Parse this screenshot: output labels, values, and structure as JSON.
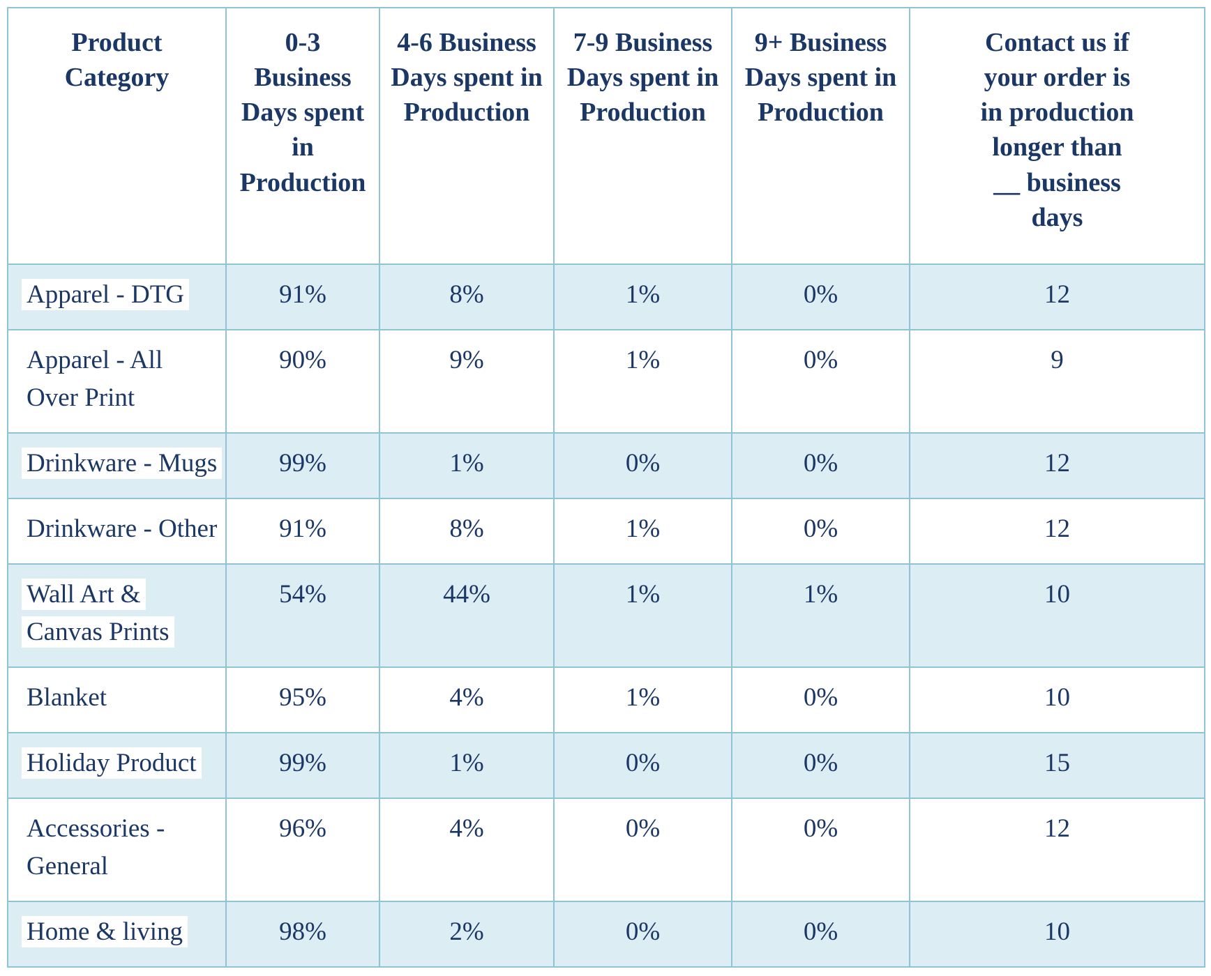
{
  "colors": {
    "text_navy": "#1b3766",
    "border_blue": "#8fc3d6",
    "row_light_blue": "#dcedf4",
    "row_white": "#ffffff",
    "category_highlight": "#ffffff"
  },
  "table": {
    "columns": [
      {
        "label": "Product\nCategory"
      },
      {
        "label": "0-3\nBusiness\nDays spent\nin\nProduction"
      },
      {
        "label": "4-6 Business\nDays spent in\nProduction"
      },
      {
        "label": "7-9 Business\nDays spent in\nProduction"
      },
      {
        "label": "9+ Business\nDays spent in\nProduction"
      },
      {
        "label": "Contact us if\nyour order is\nin production\nlonger than\n__ business\ndays"
      }
    ],
    "rows": [
      {
        "category": "Apparel - DTG",
        "highlighted": true,
        "values": [
          "91%",
          "8%",
          "1%",
          "0%",
          "12"
        ]
      },
      {
        "category": "Apparel - All\nOver Print",
        "highlighted": false,
        "values": [
          "90%",
          "9%",
          "1%",
          "0%",
          "9"
        ]
      },
      {
        "category": "Drinkware - Mugs",
        "highlighted": true,
        "values": [
          "99%",
          "1%",
          "0%",
          "0%",
          "12"
        ]
      },
      {
        "category": "Drinkware - Other",
        "highlighted": false,
        "values": [
          "91%",
          "8%",
          "1%",
          "0%",
          "12"
        ]
      },
      {
        "category": "Wall Art &\nCanvas Prints",
        "highlighted": true,
        "values": [
          "54%",
          "44%",
          "1%",
          "1%",
          "10"
        ]
      },
      {
        "category": "Blanket",
        "highlighted": false,
        "values": [
          "95%",
          "4%",
          "1%",
          "0%",
          "10"
        ]
      },
      {
        "category": "Holiday Product",
        "highlighted": true,
        "values": [
          "99%",
          "1%",
          "0%",
          "0%",
          "15"
        ]
      },
      {
        "category": "Accessories -\nGeneral",
        "highlighted": false,
        "values": [
          "96%",
          "4%",
          "0%",
          "0%",
          "12"
        ]
      },
      {
        "category": "Home & living",
        "highlighted": true,
        "values": [
          "98%",
          "2%",
          "0%",
          "0%",
          "10"
        ]
      }
    ]
  }
}
